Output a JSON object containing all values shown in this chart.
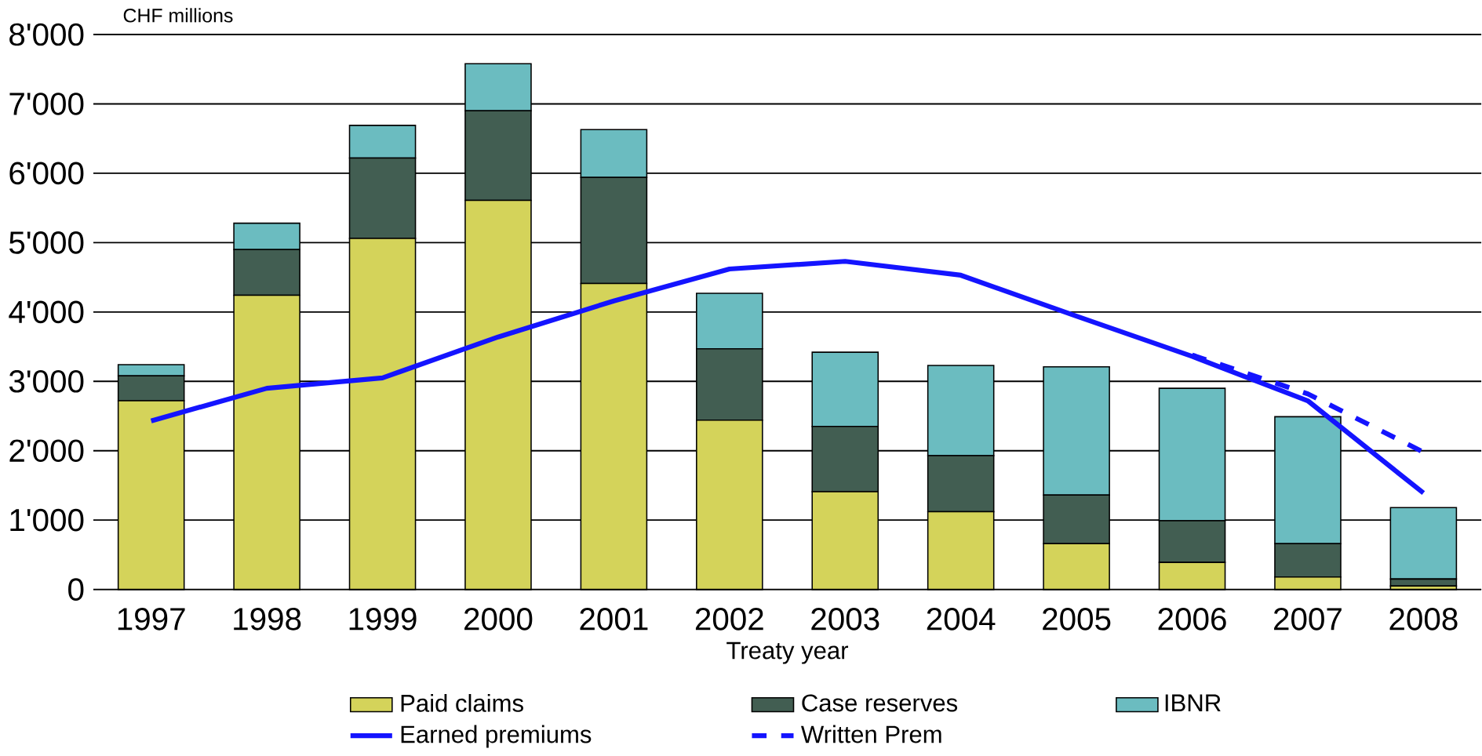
{
  "chart_data": {
    "type": "bar",
    "stacked": true,
    "ylabel": "CHF millions",
    "xlabel": "Treaty year",
    "categories": [
      "1997",
      "1998",
      "1999",
      "2000",
      "2001",
      "2002",
      "2003",
      "2004",
      "2005",
      "2006",
      "2007",
      "2008"
    ],
    "series": [
      {
        "name": "Paid claims",
        "color": "#d4d35a",
        "values": [
          2720,
          4240,
          5060,
          5610,
          4410,
          2440,
          1410,
          1120,
          660,
          390,
          180,
          50
        ]
      },
      {
        "name": "Case reserves",
        "color": "#425e52",
        "values": [
          360,
          660,
          1160,
          1290,
          1530,
          1030,
          940,
          810,
          700,
          600,
          480,
          100
        ]
      },
      {
        "name": "IBNR",
        "color": "#6bbcc0",
        "values": [
          160,
          380,
          470,
          680,
          690,
          800,
          1070,
          1300,
          1850,
          1910,
          1830,
          1030
        ]
      },
      {
        "name": "Earned premiums",
        "type": "line",
        "color": "#1414ff",
        "line_style": "solid",
        "values": [
          2430,
          2900,
          3050,
          3640,
          4160,
          4620,
          4730,
          4530,
          3940,
          3360,
          2720,
          1390
        ]
      },
      {
        "name": "Written Prem",
        "type": "line",
        "color": "#1414ff",
        "line_style": "dashed",
        "values": [
          null,
          null,
          null,
          null,
          null,
          null,
          null,
          null,
          null,
          3380,
          2820,
          1980
        ]
      }
    ],
    "ylim": [
      0,
      8000
    ],
    "yticks": [
      {
        "value": 0,
        "label": "0"
      },
      {
        "value": 1000,
        "label": "1'000"
      },
      {
        "value": 2000,
        "label": "2'000"
      },
      {
        "value": 3000,
        "label": "3'000"
      },
      {
        "value": 4000,
        "label": "4'000"
      },
      {
        "value": 5000,
        "label": "5'000"
      },
      {
        "value": 6000,
        "label": "6'000"
      },
      {
        "value": 7000,
        "label": "7'000"
      },
      {
        "value": 8000,
        "label": "8'000"
      }
    ],
    "grid": "y",
    "legend": "bottom",
    "marker": "none"
  }
}
